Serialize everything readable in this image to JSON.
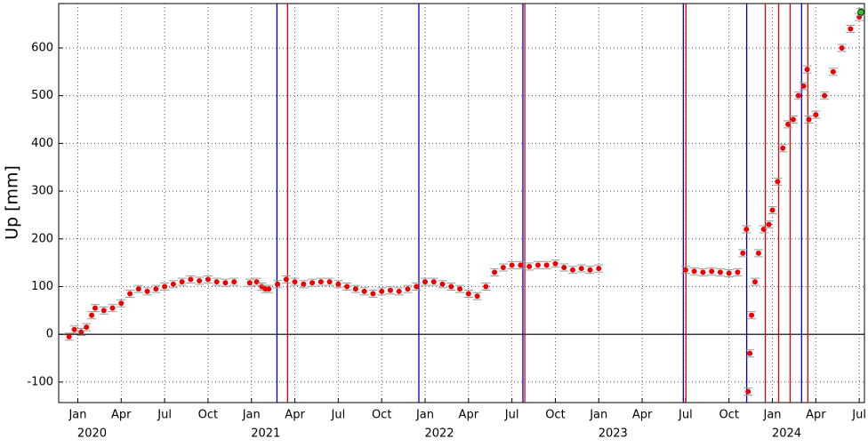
{
  "chart_data": {
    "type": "scatter",
    "ylabel": "Up [mm]",
    "xlim": [
      2019.89,
      2024.53
    ],
    "ylim": [
      -143,
      693
    ],
    "xticks": [
      {
        "value": 2020,
        "label": "Jan"
      },
      {
        "value": 2020.25,
        "label": "Apr"
      },
      {
        "value": 2020.5,
        "label": "Jul"
      },
      {
        "value": 2020.75,
        "label": "Oct"
      },
      {
        "value": 2021,
        "label": "Jan"
      },
      {
        "value": 2021.25,
        "label": "Apr"
      },
      {
        "value": 2021.5,
        "label": "Jul"
      },
      {
        "value": 2021.75,
        "label": "Oct"
      },
      {
        "value": 2022,
        "label": "Jan"
      },
      {
        "value": 2022.25,
        "label": "Apr"
      },
      {
        "value": 2022.5,
        "label": "Jul"
      },
      {
        "value": 2022.75,
        "label": "Oct"
      },
      {
        "value": 2023,
        "label": "Jan"
      },
      {
        "value": 2023.25,
        "label": "Apr"
      },
      {
        "value": 2023.5,
        "label": "Jul"
      },
      {
        "value": 2023.75,
        "label": "Oct"
      },
      {
        "value": 2024,
        "label": "Jan"
      },
      {
        "value": 2024.25,
        "label": "Apr"
      },
      {
        "value": 2024.5,
        "label": "Jul"
      }
    ],
    "year_labels": [
      "2020",
      "2021",
      "2022",
      "2023",
      "2024"
    ],
    "yticks": [
      -100,
      0,
      100,
      200,
      300,
      400,
      500,
      600
    ],
    "grid": true,
    "zero_line": true,
    "event_lines": [
      {
        "x": 2021.147,
        "color": "#0000cc"
      },
      {
        "x": 2021.208,
        "color": "#dd0000"
      },
      {
        "x": 2021.964,
        "color": "#0000cc"
      },
      {
        "x": 2022.563,
        "color": "#0000cc"
      },
      {
        "x": 2022.574,
        "color": "#dd0000"
      },
      {
        "x": 2023.487,
        "color": "#0000cc"
      },
      {
        "x": 2023.502,
        "color": "#dd0000"
      },
      {
        "x": 2023.852,
        "color": "#0000cc"
      },
      {
        "x": 2023.959,
        "color": "#dd0000"
      },
      {
        "x": 2024.036,
        "color": "#dd0000"
      },
      {
        "x": 2024.102,
        "color": "#dd0000"
      },
      {
        "x": 2024.168,
        "color": "#0000cc"
      },
      {
        "x": 2024.204,
        "color": "#dd0000"
      }
    ],
    "series": [
      {
        "color": "#ee0000",
        "x": [
          2019.95,
          2019.98,
          2020.02,
          2020.05,
          2020.08,
          2020.1,
          2020.15,
          2020.2,
          2020.25,
          2020.3,
          2020.35,
          2020.4,
          2020.45,
          2020.5,
          2020.55,
          2020.6,
          2020.65,
          2020.7,
          2020.75,
          2020.8,
          2020.85,
          2020.9,
          2020.99,
          2021.03,
          2021.06,
          2021.08,
          2021.1,
          2021.15,
          2021.2,
          2021.25,
          2021.3,
          2021.35,
          2021.4,
          2021.45,
          2021.5,
          2021.55,
          2021.6,
          2021.65,
          2021.7,
          2021.75,
          2021.8,
          2021.85,
          2021.9,
          2021.95,
          2022.0,
          2022.05,
          2022.1,
          2022.15,
          2022.2,
          2022.25,
          2022.3,
          2022.35,
          2022.4,
          2022.45,
          2022.5,
          2022.55,
          2022.6,
          2022.65,
          2022.7,
          2022.75,
          2022.8,
          2022.85,
          2022.9,
          2022.95,
          2023.0,
          2023.5,
          2023.55,
          2023.6,
          2023.65,
          2023.7,
          2023.75,
          2023.8,
          2023.83,
          2023.85,
          2023.86,
          2023.87,
          2023.88,
          2023.9,
          2023.92,
          2023.95,
          2023.98,
          2024.0,
          2024.03,
          2024.06,
          2024.09,
          2024.12,
          2024.15,
          2024.18,
          2024.2,
          2024.21,
          2024.25,
          2024.3,
          2024.35,
          2024.4,
          2024.45,
          2024.5
        ],
        "values": [
          -5,
          10,
          5,
          15,
          40,
          55,
          50,
          55,
          65,
          85,
          95,
          90,
          95,
          100,
          105,
          110,
          115,
          112,
          115,
          110,
          108,
          110,
          108,
          110,
          100,
          95,
          95,
          105,
          115,
          110,
          105,
          108,
          110,
          110,
          105,
          100,
          95,
          90,
          85,
          90,
          92,
          90,
          95,
          100,
          110,
          110,
          105,
          100,
          95,
          85,
          80,
          100,
          130,
          140,
          145,
          145,
          142,
          145,
          145,
          148,
          140,
          135,
          138,
          135,
          138,
          135,
          132,
          130,
          132,
          130,
          128,
          130,
          170,
          220,
          -120,
          -40,
          40,
          110,
          170,
          220,
          230,
          260,
          320,
          390,
          440,
          450,
          500,
          520,
          555,
          450,
          460,
          500,
          550,
          600,
          640,
          665
        ]
      },
      {
        "color": "#22cc22",
        "x": [
          2024.51
        ],
        "values": [
          675
        ]
      }
    ]
  }
}
